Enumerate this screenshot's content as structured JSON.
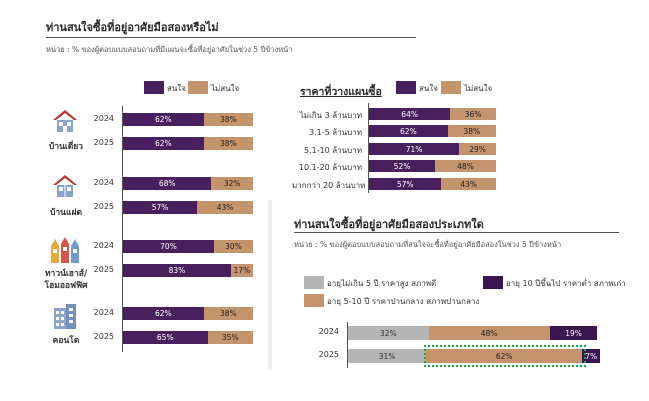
{
  "colors": {
    "interested": "#4a1f5e",
    "not_interested": "#c4946c",
    "new": "#b5b5b5",
    "mid": "#c4946c",
    "old": "#3a1650",
    "highlight": "#1aa34a"
  },
  "left": {
    "title": "ท่านสนใจซื้อที่อยู่อาศัยมือสองหรือไม่",
    "subtitle": "หน่วย : % ของผู้ตอบแบบสอบถามที่มีแผนจะซื้อที่อยู่อาศัยในช่วง 5 ปีข้างหน้า",
    "legend": [
      "สนใจ",
      "ไม่สนใจ"
    ]
  },
  "price": {
    "title": "ราคาที่วางแผนซื้อ",
    "legend": [
      "สนใจ",
      "ไม่สนใจ"
    ]
  },
  "type": {
    "title": "ท่านสนใจซื้อที่อยู่อาศัยมือสองประเภทใด",
    "subtitle": "หน่วย : % ของผู้ตอบแบบสอบถามที่สนใจจะซื้อที่อยู่อาศัยมือสองในช่วง 5 ปีข้างหน้า",
    "legend": [
      "อายุไม่เกิน 5 ปี ราคาสูง สภาพดี",
      "อายุ 10 ปีขึ้นไป ราคาต่ำ สภาพเก่า",
      "อายุ 5-10 ปี ราคาปานกลาง สภาพปานกลาง"
    ]
  },
  "groups": [
    {
      "label": "บ้านเดี่ยว",
      "icon": "single-house-icon"
    },
    {
      "label": "บ้านแฝด",
      "icon": "twin-house-icon"
    },
    {
      "label": "ทาวน์เฮาส์/\nโฮมออฟฟิศ",
      "icon": "townhouse-icon"
    },
    {
      "label": "คอนโด",
      "icon": "condo-icon"
    }
  ],
  "chart_data": [
    {
      "type": "bar",
      "stacked": true,
      "orientation": "horizontal",
      "title": "ท่านสนใจซื้อที่อยู่อาศัยมือสองหรือไม่",
      "subtitle": "หน่วย : % ของผู้ตอบแบบสอบถามที่มีแผนจะซื้อที่อยู่อาศัยในช่วง 5 ปีข้างหน้า",
      "groups": [
        "บ้านเดี่ยว",
        "บ้านแฝด",
        "ทาวน์เฮาส์/โฮมออฟฟิศ",
        "คอนโด"
      ],
      "categories": [
        "2024",
        "2025",
        "2024",
        "2025",
        "2024",
        "2025",
        "2024",
        "2025"
      ],
      "series": [
        {
          "name": "สนใจ",
          "values": [
            62,
            62,
            68,
            57,
            70,
            83,
            62,
            65
          ],
          "labels": [
            "62%",
            "62%",
            "68%",
            "57%",
            "70%",
            "83%",
            "62%",
            "65%"
          ]
        },
        {
          "name": "ไม่สนใจ",
          "values": [
            38,
            38,
            32,
            43,
            30,
            17,
            38,
            35
          ],
          "labels": [
            "38%",
            "38%",
            "32%",
            "43%",
            "30%",
            "17%",
            "38%",
            "35%"
          ]
        }
      ],
      "xlim": [
        0,
        100
      ],
      "legend": "top"
    },
    {
      "type": "bar",
      "stacked": true,
      "orientation": "horizontal",
      "title": "ราคาที่วางแผนซื้อ",
      "categories": [
        "ไม่เกิน 3 ล้านบาท",
        "3.1-5 ล้านบาท",
        "5.1-10 ล้านบาท",
        "10.1-20 ล้านบาท",
        "มากกว่า 20 ล้านบาท"
      ],
      "series": [
        {
          "name": "สนใจ",
          "values": [
            64,
            62,
            71,
            52,
            57
          ],
          "labels": [
            "64%",
            "62%",
            "71%",
            "52%",
            "57%"
          ]
        },
        {
          "name": "ไม่สนใจ",
          "values": [
            36,
            38,
            29,
            48,
            43
          ],
          "labels": [
            "36%",
            "38%",
            "29%",
            "48%",
            "43%"
          ]
        }
      ],
      "xlim": [
        0,
        100
      ],
      "legend": "top"
    },
    {
      "type": "bar",
      "stacked": true,
      "orientation": "horizontal",
      "title": "ท่านสนใจซื้อที่อยู่อาศัยมือสองประเภทใด",
      "subtitle": "หน่วย : % ของผู้ตอบแบบสอบถามที่สนใจจะซื้อที่อยู่อาศัยมือสองในช่วง 5 ปีข้างหน้า",
      "categories": [
        "2024",
        "2025"
      ],
      "series": [
        {
          "name": "อายุไม่เกิน 5 ปี ราคาสูง สภาพดี",
          "values": [
            32,
            31
          ],
          "labels": [
            "32%",
            "31%"
          ]
        },
        {
          "name": "อายุ 5-10 ปี ราคาปานกลาง สภาพปานกลาง",
          "values": [
            48,
            62
          ],
          "labels": [
            "48%",
            "62%"
          ]
        },
        {
          "name": "อายุ 10 ปีขึ้นไป ราคาต่ำ สภาพเก่า",
          "values": [
            19,
            7
          ],
          "labels": [
            "19%",
            "7%"
          ]
        }
      ],
      "xlim": [
        0,
        100
      ],
      "legend": "top",
      "highlight": {
        "category": "2025",
        "series": "อายุ 5-10 ปี ราคาปานกลาง สภาพปานกลาง"
      }
    }
  ]
}
